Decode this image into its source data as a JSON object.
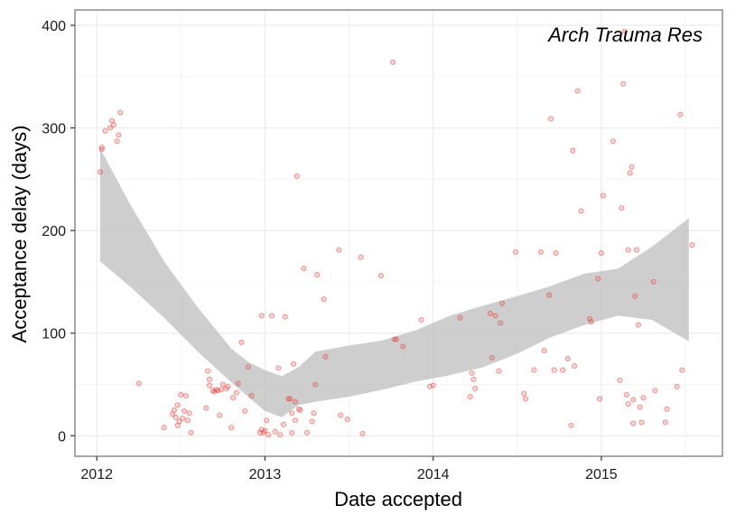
{
  "chart_data": {
    "type": "scatter",
    "title": "Arch Trauma Res",
    "xlabel": "Date accepted",
    "ylabel": "Acceptance delay (days)",
    "xlim": [
      2011.87,
      2015.72
    ],
    "ylim": [
      -20,
      415
    ],
    "x_ticks": [
      2012,
      2013,
      2014,
      2015
    ],
    "x_tick_labels": [
      "2012",
      "2013",
      "2014",
      "2015"
    ],
    "y_ticks": [
      0,
      100,
      200,
      300,
      400
    ],
    "y_tick_labels": [
      "0",
      "100",
      "200",
      "300",
      "400"
    ],
    "grid": true,
    "colors": {
      "points": "#e8403a",
      "band": "#bdbdbd",
      "grid_major": "#ebebeb",
      "grid_minor": "#f4f4f4",
      "panel_border": "#8c8c8c"
    },
    "series": [
      {
        "points": [
          [
            2012.02,
            257
          ],
          [
            2012.03,
            279
          ],
          [
            2012.03,
            281
          ],
          [
            2012.05,
            297
          ],
          [
            2012.08,
            300
          ],
          [
            2012.09,
            307
          ],
          [
            2012.1,
            303
          ],
          [
            2012.12,
            287
          ],
          [
            2012.13,
            293
          ],
          [
            2012.14,
            315
          ],
          [
            2012.25,
            51
          ],
          [
            2012.4,
            8
          ],
          [
            2012.45,
            21
          ],
          [
            2012.46,
            25
          ],
          [
            2012.47,
            18
          ],
          [
            2012.48,
            30
          ],
          [
            2012.48,
            10
          ],
          [
            2012.49,
            14
          ],
          [
            2012.5,
            40
          ],
          [
            2012.51,
            17
          ],
          [
            2012.52,
            24
          ],
          [
            2012.53,
            39
          ],
          [
            2012.54,
            15
          ],
          [
            2012.55,
            22
          ],
          [
            2012.56,
            3
          ],
          [
            2012.65,
            27
          ],
          [
            2012.66,
            63
          ],
          [
            2012.67,
            55
          ],
          [
            2012.67,
            49
          ],
          [
            2012.69,
            44
          ],
          [
            2012.7,
            43
          ],
          [
            2012.71,
            45
          ],
          [
            2012.72,
            44
          ],
          [
            2012.73,
            20
          ],
          [
            2012.74,
            45
          ],
          [
            2012.75,
            50
          ],
          [
            2012.77,
            46
          ],
          [
            2012.78,
            48
          ],
          [
            2012.8,
            8
          ],
          [
            2012.81,
            37
          ],
          [
            2012.83,
            42
          ],
          [
            2012.84,
            51
          ],
          [
            2012.86,
            91
          ],
          [
            2012.88,
            24
          ],
          [
            2012.9,
            67
          ],
          [
            2012.92,
            39
          ],
          [
            2012.97,
            3
          ],
          [
            2012.98,
            6
          ],
          [
            2012.98,
            117
          ],
          [
            2012.99,
            3
          ],
          [
            2013.0,
            5
          ],
          [
            2013.01,
            15
          ],
          [
            2013.02,
            1
          ],
          [
            2013.04,
            117
          ],
          [
            2013.06,
            4
          ],
          [
            2013.08,
            66
          ],
          [
            2013.09,
            1
          ],
          [
            2013.11,
            11
          ],
          [
            2013.12,
            116
          ],
          [
            2013.14,
            36
          ],
          [
            2013.15,
            36
          ],
          [
            2013.16,
            22
          ],
          [
            2013.16,
            3
          ],
          [
            2013.17,
            70
          ],
          [
            2013.18,
            15
          ],
          [
            2013.18,
            33
          ],
          [
            2013.19,
            253
          ],
          [
            2013.2,
            26
          ],
          [
            2013.21,
            25
          ],
          [
            2013.23,
            163
          ],
          [
            2013.25,
            3
          ],
          [
            2013.28,
            14
          ],
          [
            2013.29,
            22
          ],
          [
            2013.3,
            50
          ],
          [
            2013.31,
            157
          ],
          [
            2013.35,
            133
          ],
          [
            2013.36,
            77
          ],
          [
            2013.44,
            181
          ],
          [
            2013.45,
            20
          ],
          [
            2013.49,
            16
          ],
          [
            2013.57,
            174
          ],
          [
            2013.58,
            2
          ],
          [
            2013.69,
            156
          ],
          [
            2013.76,
            364
          ],
          [
            2013.77,
            94
          ],
          [
            2013.78,
            94
          ],
          [
            2013.82,
            87
          ],
          [
            2013.93,
            113
          ],
          [
            2013.98,
            48
          ],
          [
            2014.0,
            49
          ],
          [
            2014.16,
            115
          ],
          [
            2014.22,
            38
          ],
          [
            2014.23,
            61
          ],
          [
            2014.24,
            55
          ],
          [
            2014.25,
            46
          ],
          [
            2014.34,
            119
          ],
          [
            2014.35,
            76
          ],
          [
            2014.37,
            117
          ],
          [
            2014.39,
            63
          ],
          [
            2014.4,
            110
          ],
          [
            2014.41,
            129
          ],
          [
            2014.49,
            179
          ],
          [
            2014.54,
            41
          ],
          [
            2014.55,
            36
          ],
          [
            2014.6,
            64
          ],
          [
            2014.64,
            179
          ],
          [
            2014.66,
            83
          ],
          [
            2014.69,
            137
          ],
          [
            2014.7,
            309
          ],
          [
            2014.72,
            64
          ],
          [
            2014.73,
            178
          ],
          [
            2014.77,
            64
          ],
          [
            2014.8,
            75
          ],
          [
            2014.82,
            10
          ],
          [
            2014.83,
            278
          ],
          [
            2014.84,
            68
          ],
          [
            2014.86,
            336
          ],
          [
            2014.88,
            219
          ],
          [
            2014.93,
            114
          ],
          [
            2014.94,
            111
          ],
          [
            2014.98,
            153
          ],
          [
            2014.99,
            36
          ],
          [
            2015.0,
            178
          ],
          [
            2015.01,
            234
          ],
          [
            2015.07,
            287
          ],
          [
            2015.11,
            54
          ],
          [
            2015.12,
            222
          ],
          [
            2015.13,
            343
          ],
          [
            2015.14,
            394
          ],
          [
            2015.15,
            40
          ],
          [
            2015.16,
            31
          ],
          [
            2015.16,
            181
          ],
          [
            2015.17,
            256
          ],
          [
            2015.18,
            262
          ],
          [
            2015.19,
            12
          ],
          [
            2015.19,
            35
          ],
          [
            2015.2,
            136
          ],
          [
            2015.21,
            181
          ],
          [
            2015.22,
            108
          ],
          [
            2015.23,
            28
          ],
          [
            2015.24,
            13
          ],
          [
            2015.25,
            37
          ],
          [
            2015.31,
            150
          ],
          [
            2015.32,
            44
          ],
          [
            2015.38,
            13
          ],
          [
            2015.39,
            26
          ],
          [
            2015.45,
            48
          ],
          [
            2015.47,
            313
          ],
          [
            2015.48,
            64
          ],
          [
            2015.54,
            186
          ]
        ]
      }
    ],
    "smooth_band": {
      "x": [
        2012.02,
        2012.2,
        2012.4,
        2012.6,
        2012.8,
        2012.9,
        2013.0,
        2013.1,
        2013.2,
        2013.3,
        2013.5,
        2013.7,
        2013.9,
        2014.1,
        2014.3,
        2014.5,
        2014.7,
        2014.9,
        2015.1,
        2015.3,
        2015.52
      ],
      "lower": [
        170,
        145,
        115,
        82,
        52,
        38,
        24,
        18,
        30,
        33,
        38,
        45,
        53,
        59,
        67,
        80,
        96,
        108,
        117,
        113,
        92
      ],
      "upper": [
        280,
        225,
        170,
        125,
        85,
        72,
        64,
        58,
        67,
        82,
        88,
        93,
        103,
        117,
        127,
        136,
        146,
        158,
        163,
        184,
        212
      ]
    }
  }
}
